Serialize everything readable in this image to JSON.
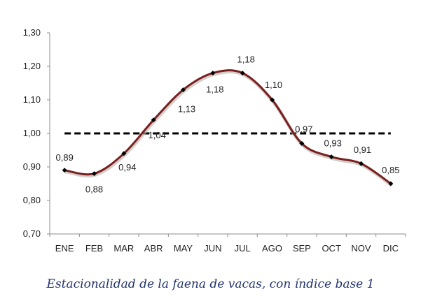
{
  "caption": "Estacionalidad de la faena de vacas, con índice base 1",
  "chart_data": {
    "type": "line",
    "title": "",
    "xlabel": "",
    "ylabel": "",
    "categories": [
      "ENE",
      "FEB",
      "MAR",
      "ABR",
      "MAY",
      "JUN",
      "JUL",
      "AGO",
      "SEP",
      "OCT",
      "NOV",
      "DIC"
    ],
    "values": [
      0.89,
      0.88,
      0.94,
      1.04,
      1.13,
      1.18,
      1.18,
      1.1,
      0.97,
      0.93,
      0.91,
      0.85
    ],
    "data_labels": [
      "0,89",
      "0,88",
      "0,94",
      "1,04",
      "1,13",
      "1,18",
      "1,18",
      "1,10",
      "0,97",
      "0,93",
      "0,91",
      "0,85"
    ],
    "ylim": [
      0.7,
      1.3
    ],
    "yticks": [
      0.7,
      0.8,
      0.9,
      1.0,
      1.1,
      1.2,
      1.3
    ],
    "ytick_labels": [
      "0,70",
      "0,80",
      "0,90",
      "1,00",
      "1,10",
      "1,20",
      "1,30"
    ],
    "reference_line": {
      "value": 1.0,
      "style": "dashed",
      "color": "#000000"
    },
    "smoothed": true,
    "line_color": "#7a1f1f",
    "marker": "diamond",
    "marker_color": "#000000",
    "grid": false,
    "legend": "none"
  }
}
